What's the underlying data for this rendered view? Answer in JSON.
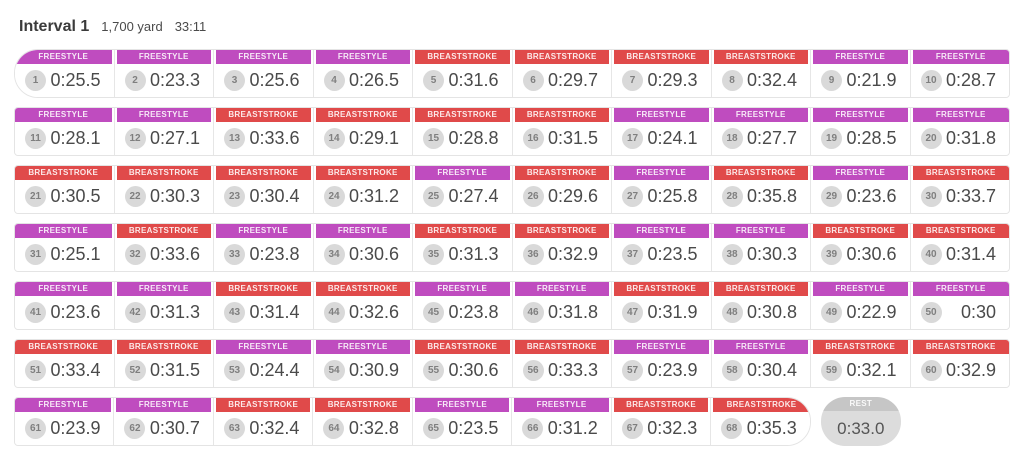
{
  "header": {
    "title": "Interval 1",
    "distance": "1,700 yard",
    "duration": "33:11"
  },
  "colors": {
    "FREESTYLE": "#bf4cbf",
    "BREASTSTROKE": "#e04a4a",
    "rest_band": "#c6c6c6",
    "rest_body": "#dcdcdc"
  },
  "rest": {
    "label": "REST",
    "time": "0:33.0"
  },
  "rows": [
    [
      {
        "n": "1",
        "stroke": "FREESTYLE",
        "time": "0:25.5"
      },
      {
        "n": "2",
        "stroke": "FREESTYLE",
        "time": "0:23.3"
      },
      {
        "n": "3",
        "stroke": "FREESTYLE",
        "time": "0:25.6"
      },
      {
        "n": "4",
        "stroke": "FREESTYLE",
        "time": "0:26.5"
      },
      {
        "n": "5",
        "stroke": "BREASTSTROKE",
        "time": "0:31.6"
      },
      {
        "n": "6",
        "stroke": "BREASTSTROKE",
        "time": "0:29.7"
      },
      {
        "n": "7",
        "stroke": "BREASTSTROKE",
        "time": "0:29.3"
      },
      {
        "n": "8",
        "stroke": "BREASTSTROKE",
        "time": "0:32.4"
      },
      {
        "n": "9",
        "stroke": "FREESTYLE",
        "time": "0:21.9"
      },
      {
        "n": "10",
        "stroke": "FREESTYLE",
        "time": "0:28.7"
      }
    ],
    [
      {
        "n": "11",
        "stroke": "FREESTYLE",
        "time": "0:28.1"
      },
      {
        "n": "12",
        "stroke": "FREESTYLE",
        "time": "0:27.1"
      },
      {
        "n": "13",
        "stroke": "BREASTSTROKE",
        "time": "0:33.6"
      },
      {
        "n": "14",
        "stroke": "BREASTSTROKE",
        "time": "0:29.1"
      },
      {
        "n": "15",
        "stroke": "BREASTSTROKE",
        "time": "0:28.8"
      },
      {
        "n": "16",
        "stroke": "BREASTSTROKE",
        "time": "0:31.5"
      },
      {
        "n": "17",
        "stroke": "FREESTYLE",
        "time": "0:24.1"
      },
      {
        "n": "18",
        "stroke": "FREESTYLE",
        "time": "0:27.7"
      },
      {
        "n": "19",
        "stroke": "FREESTYLE",
        "time": "0:28.5"
      },
      {
        "n": "20",
        "stroke": "FREESTYLE",
        "time": "0:31.8"
      }
    ],
    [
      {
        "n": "21",
        "stroke": "BREASTSTROKE",
        "time": "0:30.5"
      },
      {
        "n": "22",
        "stroke": "BREASTSTROKE",
        "time": "0:30.3"
      },
      {
        "n": "23",
        "stroke": "BREASTSTROKE",
        "time": "0:30.4"
      },
      {
        "n": "24",
        "stroke": "BREASTSTROKE",
        "time": "0:31.2"
      },
      {
        "n": "25",
        "stroke": "FREESTYLE",
        "time": "0:27.4"
      },
      {
        "n": "26",
        "stroke": "BREASTSTROKE",
        "time": "0:29.6"
      },
      {
        "n": "27",
        "stroke": "FREESTYLE",
        "time": "0:25.8"
      },
      {
        "n": "28",
        "stroke": "BREASTSTROKE",
        "time": "0:35.8"
      },
      {
        "n": "29",
        "stroke": "FREESTYLE",
        "time": "0:23.6"
      },
      {
        "n": "30",
        "stroke": "BREASTSTROKE",
        "time": "0:33.7"
      }
    ],
    [
      {
        "n": "31",
        "stroke": "FREESTYLE",
        "time": "0:25.1"
      },
      {
        "n": "32",
        "stroke": "BREASTSTROKE",
        "time": "0:33.6"
      },
      {
        "n": "33",
        "stroke": "FREESTYLE",
        "time": "0:23.8"
      },
      {
        "n": "34",
        "stroke": "FREESTYLE",
        "time": "0:30.6"
      },
      {
        "n": "35",
        "stroke": "BREASTSTROKE",
        "time": "0:31.3"
      },
      {
        "n": "36",
        "stroke": "BREASTSTROKE",
        "time": "0:32.9"
      },
      {
        "n": "37",
        "stroke": "FREESTYLE",
        "time": "0:23.5"
      },
      {
        "n": "38",
        "stroke": "FREESTYLE",
        "time": "0:30.3"
      },
      {
        "n": "39",
        "stroke": "BREASTSTROKE",
        "time": "0:30.6"
      },
      {
        "n": "40",
        "stroke": "BREASTSTROKE",
        "time": "0:31.4"
      }
    ],
    [
      {
        "n": "41",
        "stroke": "FREESTYLE",
        "time": "0:23.6"
      },
      {
        "n": "42",
        "stroke": "FREESTYLE",
        "time": "0:31.3"
      },
      {
        "n": "43",
        "stroke": "BREASTSTROKE",
        "time": "0:31.4"
      },
      {
        "n": "44",
        "stroke": "BREASTSTROKE",
        "time": "0:32.6"
      },
      {
        "n": "45",
        "stroke": "FREESTYLE",
        "time": "0:23.8"
      },
      {
        "n": "46",
        "stroke": "FREESTYLE",
        "time": "0:31.8"
      },
      {
        "n": "47",
        "stroke": "BREASTSTROKE",
        "time": "0:31.9"
      },
      {
        "n": "48",
        "stroke": "BREASTSTROKE",
        "time": "0:30.8"
      },
      {
        "n": "49",
        "stroke": "FREESTYLE",
        "time": "0:22.9"
      },
      {
        "n": "50",
        "stroke": "FREESTYLE",
        "time": "0:30"
      }
    ],
    [
      {
        "n": "51",
        "stroke": "BREASTSTROKE",
        "time": "0:33.4"
      },
      {
        "n": "52",
        "stroke": "BREASTSTROKE",
        "time": "0:31.5"
      },
      {
        "n": "53",
        "stroke": "FREESTYLE",
        "time": "0:24.4"
      },
      {
        "n": "54",
        "stroke": "FREESTYLE",
        "time": "0:30.9"
      },
      {
        "n": "55",
        "stroke": "BREASTSTROKE",
        "time": "0:30.6"
      },
      {
        "n": "56",
        "stroke": "BREASTSTROKE",
        "time": "0:33.3"
      },
      {
        "n": "57",
        "stroke": "FREESTYLE",
        "time": "0:23.9"
      },
      {
        "n": "58",
        "stroke": "FREESTYLE",
        "time": "0:30.4"
      },
      {
        "n": "59",
        "stroke": "BREASTSTROKE",
        "time": "0:32.1"
      },
      {
        "n": "60",
        "stroke": "BREASTSTROKE",
        "time": "0:32.9"
      }
    ],
    [
      {
        "n": "61",
        "stroke": "FREESTYLE",
        "time": "0:23.9"
      },
      {
        "n": "62",
        "stroke": "FREESTYLE",
        "time": "0:30.7"
      },
      {
        "n": "63",
        "stroke": "BREASTSTROKE",
        "time": "0:32.4"
      },
      {
        "n": "64",
        "stroke": "BREASTSTROKE",
        "time": "0:32.8"
      },
      {
        "n": "65",
        "stroke": "FREESTYLE",
        "time": "0:23.5"
      },
      {
        "n": "66",
        "stroke": "FREESTYLE",
        "time": "0:31.2"
      },
      {
        "n": "67",
        "stroke": "BREASTSTROKE",
        "time": "0:32.3"
      },
      {
        "n": "68",
        "stroke": "BREASTSTROKE",
        "time": "0:35.3"
      }
    ]
  ]
}
